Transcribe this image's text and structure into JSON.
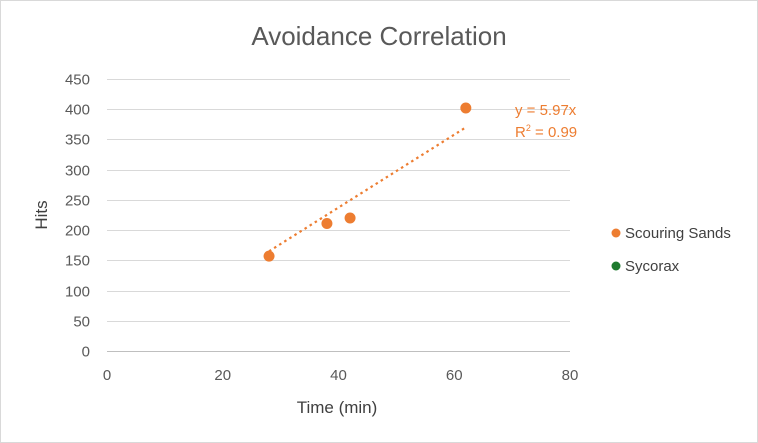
{
  "chart_data": {
    "type": "scatter",
    "title": "Avoidance Correlation",
    "xlabel": "Time (min)",
    "ylabel": "Hits",
    "xlim": [
      0,
      80
    ],
    "ylim": [
      0,
      450
    ],
    "x_ticks": [
      0,
      20,
      40,
      60,
      80
    ],
    "y_ticks": [
      0,
      50,
      100,
      150,
      200,
      250,
      300,
      350,
      400,
      450
    ],
    "grid": "horizontal",
    "legend_position": "right",
    "series": [
      {
        "name": "Scouring Sands",
        "color": "#ed7d31",
        "points": [
          {
            "x": 28,
            "y": 157
          },
          {
            "x": 38,
            "y": 211
          },
          {
            "x": 42,
            "y": 220
          },
          {
            "x": 62,
            "y": 402
          }
        ],
        "trendline": {
          "type": "linear",
          "x_range": [
            28,
            62
          ],
          "y_range": [
            165,
            370
          ],
          "equation": "y = 5.97x",
          "r2_prefix": "R",
          "r2_sup": "2",
          "r2_value": " = 0.99"
        }
      },
      {
        "name": "Sycorax",
        "color": "#1e7a2e",
        "points": []
      }
    ]
  }
}
